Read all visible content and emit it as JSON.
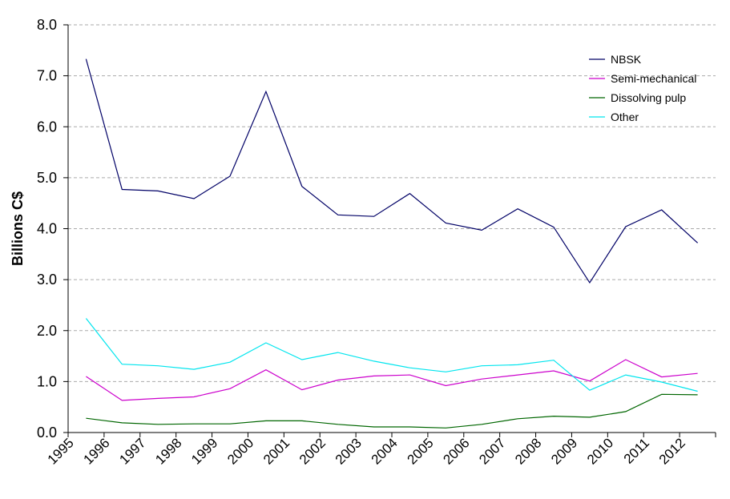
{
  "chart_data": {
    "type": "line",
    "title": "",
    "xlabel": "",
    "ylabel": "Billions C$",
    "ylim": [
      0,
      8
    ],
    "yticks": [
      "0.0",
      "1.0",
      "2.0",
      "3.0",
      "4.0",
      "5.0",
      "6.0",
      "7.0",
      "8.0"
    ],
    "categories": [
      "1995",
      "1996",
      "1997",
      "1998",
      "1999",
      "2000",
      "2001",
      "2002",
      "2003",
      "2004",
      "2005",
      "2006",
      "2007",
      "2008",
      "2009",
      "2010",
      "2011",
      "2012"
    ],
    "grid": true,
    "legend_position": "top-right",
    "series": [
      {
        "name": "NBSK",
        "color": "#000066",
        "values": [
          7.33,
          4.77,
          4.74,
          4.59,
          5.03,
          6.69,
          4.83,
          4.27,
          4.24,
          4.69,
          4.11,
          3.97,
          4.39,
          4.03,
          2.94,
          4.04,
          4.37,
          3.72
        ]
      },
      {
        "name": "Semi-mechanical",
        "color": "#cc00cc",
        "values": [
          1.1,
          0.63,
          0.67,
          0.7,
          0.86,
          1.23,
          0.84,
          1.03,
          1.11,
          1.13,
          0.92,
          1.05,
          1.13,
          1.21,
          1.01,
          1.43,
          1.09,
          1.16
        ]
      },
      {
        "name": "Dissolving pulp",
        "color": "#006600",
        "values": [
          0.28,
          0.19,
          0.16,
          0.17,
          0.17,
          0.23,
          0.23,
          0.16,
          0.11,
          0.11,
          0.09,
          0.16,
          0.27,
          0.32,
          0.3,
          0.41,
          0.75,
          0.74
        ]
      },
      {
        "name": "Other",
        "color": "#00e5ee",
        "values": [
          2.24,
          1.34,
          1.31,
          1.24,
          1.38,
          1.76,
          1.43,
          1.57,
          1.4,
          1.27,
          1.19,
          1.31,
          1.33,
          1.42,
          0.83,
          1.13,
          0.99,
          0.81
        ]
      }
    ]
  }
}
